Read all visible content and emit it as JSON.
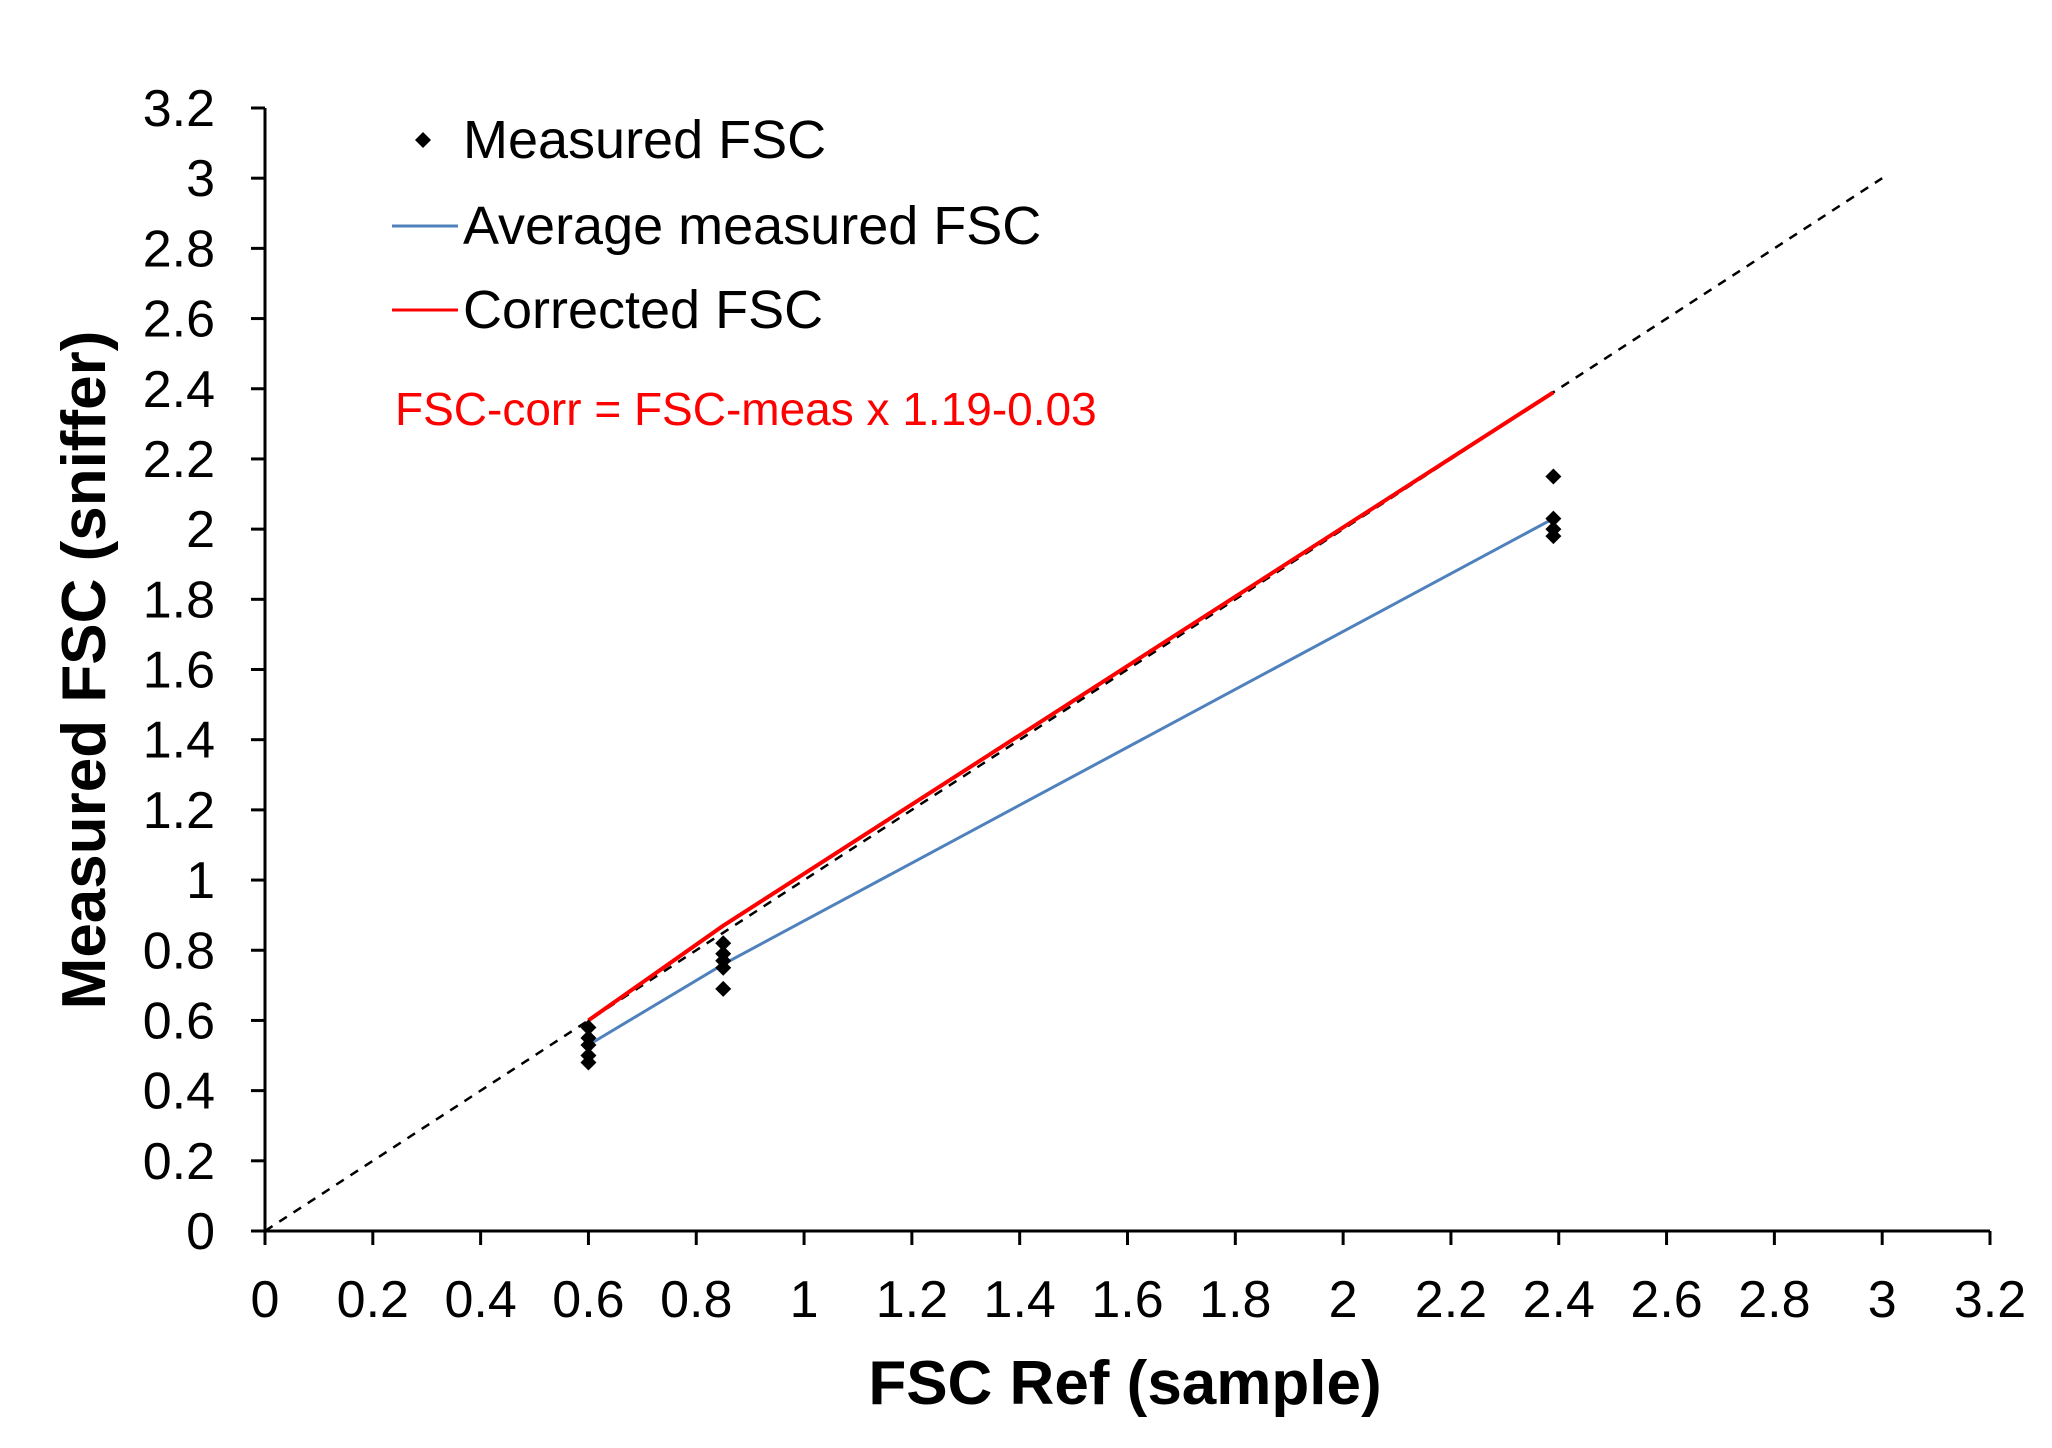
{
  "chart_data": {
    "type": "scatter",
    "title": "",
    "xlabel": "FSC Ref (sample)",
    "ylabel": "Measured FSC (sniffer)",
    "xlim": [
      0,
      3.2
    ],
    "ylim": [
      0,
      3.2
    ],
    "x_ticks": [
      "0",
      "0.2",
      "0.4",
      "0.6",
      "0.8",
      "1",
      "1.2",
      "1.4",
      "1.6",
      "1.8",
      "2",
      "2.2",
      "2.4",
      "2.6",
      "2.8",
      "3",
      "3.2"
    ],
    "y_ticks": [
      "0",
      "0.2",
      "0.4",
      "0.6",
      "0.8",
      "1",
      "1.2",
      "1.4",
      "1.6",
      "1.8",
      "2",
      "2.2",
      "2.4",
      "2.6",
      "2.8",
      "3",
      "3.2"
    ],
    "grid": false,
    "legend_position": "top-left",
    "series": [
      {
        "name": "Measured FSC",
        "kind": "points",
        "color": "#000000",
        "points": [
          {
            "x": 0.6,
            "y": 0.58
          },
          {
            "x": 0.6,
            "y": 0.55
          },
          {
            "x": 0.6,
            "y": 0.53
          },
          {
            "x": 0.6,
            "y": 0.5
          },
          {
            "x": 0.6,
            "y": 0.48
          },
          {
            "x": 0.85,
            "y": 0.82
          },
          {
            "x": 0.85,
            "y": 0.79
          },
          {
            "x": 0.85,
            "y": 0.77
          },
          {
            "x": 0.85,
            "y": 0.75
          },
          {
            "x": 0.85,
            "y": 0.69
          },
          {
            "x": 2.39,
            "y": 2.15
          },
          {
            "x": 2.39,
            "y": 2.03
          },
          {
            "x": 2.39,
            "y": 2.0
          },
          {
            "x": 2.39,
            "y": 1.98
          }
        ]
      },
      {
        "name": "Average measured FSC",
        "kind": "line",
        "color": "#4f81bd",
        "points": [
          {
            "x": 0.6,
            "y": 0.53
          },
          {
            "x": 0.85,
            "y": 0.76
          },
          {
            "x": 2.39,
            "y": 2.03
          }
        ]
      },
      {
        "name": "Corrected FSC",
        "kind": "line",
        "color": "#ff0000",
        "points": [
          {
            "x": 0.6,
            "y": 0.6
          },
          {
            "x": 0.85,
            "y": 0.87
          },
          {
            "x": 2.39,
            "y": 2.39
          }
        ]
      }
    ],
    "reference_line": {
      "name": "y = x",
      "color": "#000000",
      "style": "dashed",
      "points": [
        {
          "x": 0,
          "y": 0
        },
        {
          "x": 3,
          "y": 3
        }
      ]
    },
    "annotations": [
      {
        "text": "FSC-corr = FSC-meas  x 1.19-0.03",
        "color": "#ff0000"
      }
    ]
  }
}
